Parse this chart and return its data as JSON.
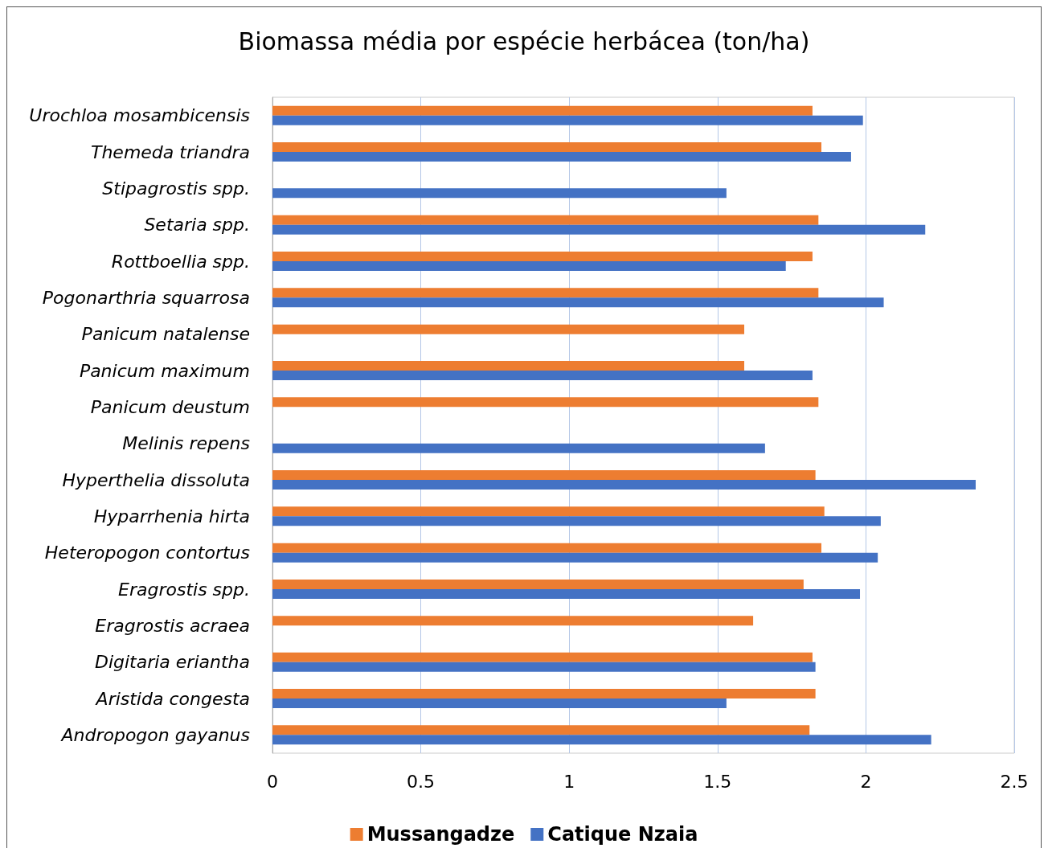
{
  "chart_data": {
    "type": "bar",
    "title": "Biomassa média por espécie herbácea (ton/ha)",
    "orientation": "horizontal",
    "categories": [
      "Urochloa mosambicensis",
      "Themeda triandra",
      "Stipagrostis spp.",
      "Setaria spp.",
      "Rottboellia spp.",
      "Pogonarthria squarrosa",
      "Panicum natalense",
      "Panicum maximum",
      "Panicum deustum",
      "Melinis repens",
      "Hyperthelia dissoluta",
      "Hyparrhenia hirta",
      "Heteropogon contortus",
      "Eragrostis spp.",
      "Eragrostis acraea",
      "Digitaria eriantha",
      "Aristida congesta",
      "Andropogon gayanus"
    ],
    "series": [
      {
        "name": "Mussangadze",
        "color": "#ed7d31",
        "values": [
          1.82,
          1.85,
          null,
          1.84,
          1.82,
          1.84,
          1.59,
          1.59,
          1.84,
          null,
          1.83,
          1.86,
          1.85,
          1.79,
          1.62,
          1.82,
          1.83,
          1.81
        ]
      },
      {
        "name": "Catique Nzaia",
        "color": "#4472c4",
        "values": [
          1.99,
          1.95,
          1.53,
          2.2,
          1.73,
          2.06,
          null,
          1.82,
          null,
          1.66,
          2.37,
          2.05,
          2.04,
          1.98,
          null,
          1.83,
          1.53,
          2.22
        ]
      }
    ],
    "xlim": [
      0,
      2.5
    ],
    "xticks": [
      0,
      0.5,
      1,
      1.5,
      2,
      2.5
    ],
    "grid": "x",
    "legend": "bottom"
  }
}
